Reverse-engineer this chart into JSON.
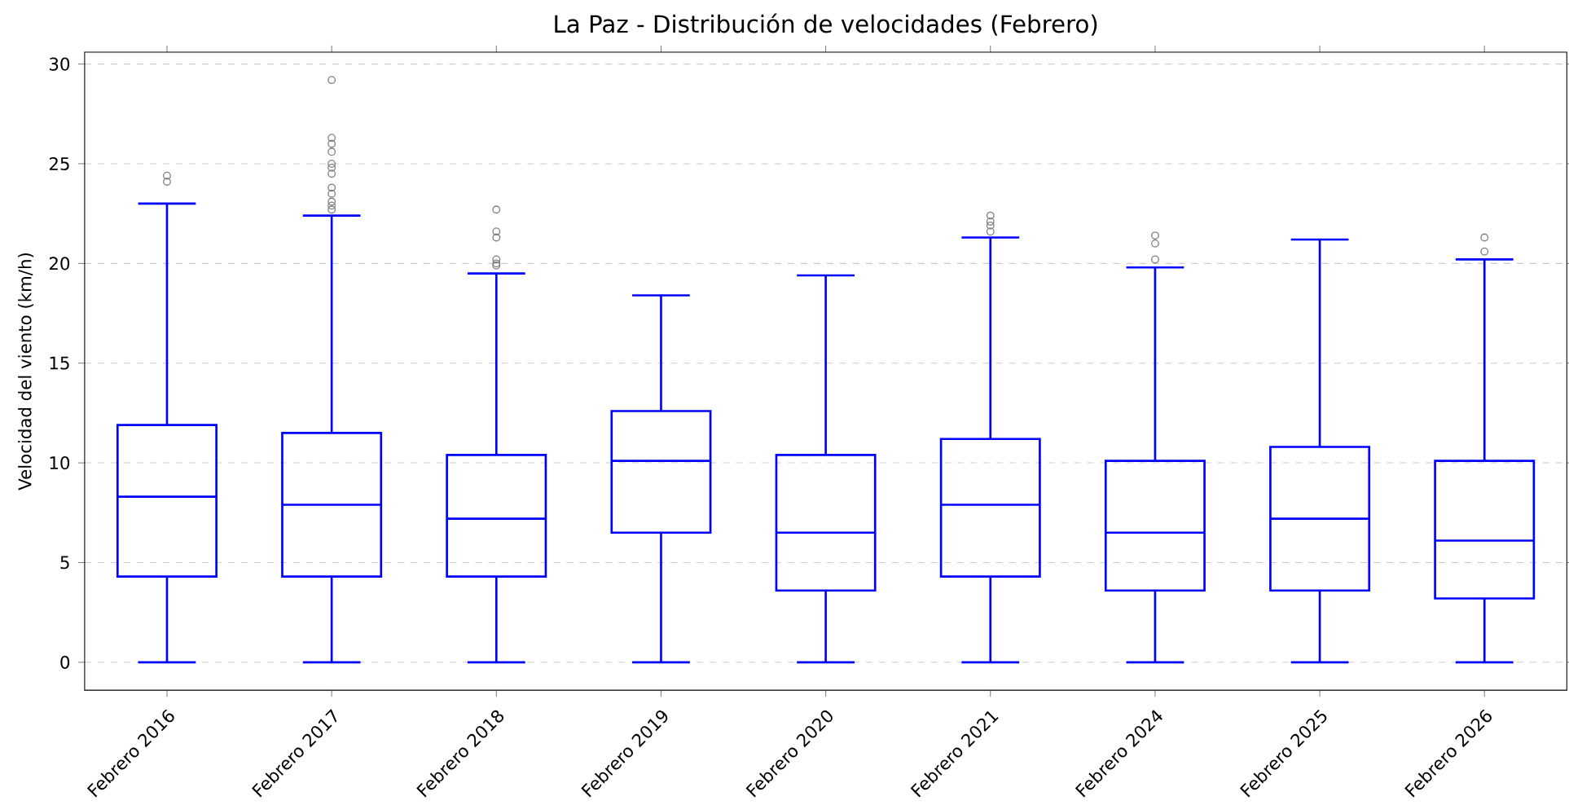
{
  "chart_data": {
    "type": "box",
    "title": "La Paz - Distribución de velocidades (Febrero)",
    "ylabel": "Velocidad del viento (km/h)",
    "categories": [
      "Febrero 2016",
      "Febrero 2017",
      "Febrero 2018",
      "Febrero 2019",
      "Febrero 2020",
      "Febrero 2021",
      "Febrero 2024",
      "Febrero 2025",
      "Febrero 2026"
    ],
    "boxes": [
      {
        "low": 0,
        "q1": 4.3,
        "median": 8.3,
        "q3": 11.9,
        "high": 23.0,
        "outliers": [
          24.1,
          24.4
        ]
      },
      {
        "low": 0,
        "q1": 4.3,
        "median": 7.9,
        "q3": 11.5,
        "high": 22.4,
        "outliers": [
          22.7,
          22.9,
          23.1,
          23.5,
          23.8,
          24.5,
          24.8,
          25.0,
          25.6,
          26.0,
          26.3,
          29.2
        ]
      },
      {
        "low": 0,
        "q1": 4.3,
        "median": 7.2,
        "q3": 10.4,
        "high": 19.5,
        "outliers": [
          19.9,
          20.0,
          20.2,
          21.3,
          21.6,
          22.7
        ]
      },
      {
        "low": 0,
        "q1": 6.5,
        "median": 10.1,
        "q3": 12.6,
        "high": 18.4
      },
      {
        "low": 0,
        "q1": 3.6,
        "median": 6.5,
        "q3": 10.4,
        "high": 19.4
      },
      {
        "low": 0,
        "q1": 4.3,
        "median": 7.9,
        "q3": 11.2,
        "high": 21.3,
        "outliers": [
          21.6,
          21.9,
          22.1,
          22.4
        ]
      },
      {
        "low": 0,
        "q1": 3.6,
        "median": 6.5,
        "q3": 10.1,
        "high": 19.8,
        "outliers": [
          20.2,
          21.0,
          21.4
        ]
      },
      {
        "low": 0,
        "q1": 3.6,
        "median": 7.2,
        "q3": 10.8,
        "high": 21.2
      },
      {
        "low": 0,
        "q1": 3.2,
        "median": 6.1,
        "q3": 10.1,
        "high": 20.2,
        "outliers": [
          20.6,
          21.3
        ]
      }
    ],
    "color": "#0000ff",
    "ylim": [
      -1.4,
      30.6
    ],
    "yticks": [
      0,
      5,
      10,
      15,
      20,
      25,
      30
    ],
    "grid": "y"
  }
}
